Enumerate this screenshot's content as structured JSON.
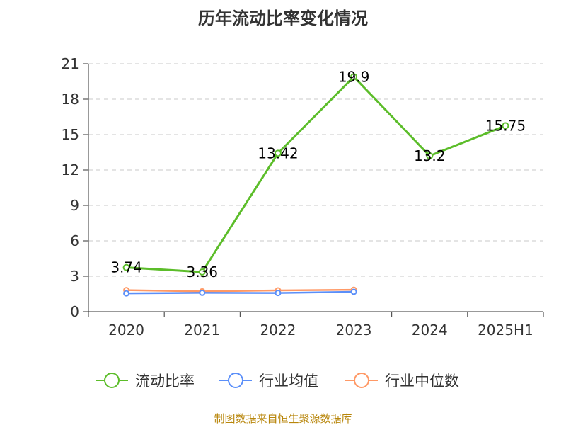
{
  "chart_data": {
    "type": "line",
    "title": "历年流动比率变化情况",
    "categories": [
      "2020",
      "2021",
      "2022",
      "2023",
      "2024",
      "2025H1"
    ],
    "ylim": [
      0,
      21
    ],
    "yticks": [
      0,
      3,
      6,
      9,
      12,
      15,
      18,
      21
    ],
    "grid": "horizontal dashed",
    "legend_position": "bottom",
    "series": [
      {
        "name": "流动比率",
        "color": "#5cbd2a",
        "values": [
          3.74,
          3.36,
          13.42,
          19.9,
          13.2,
          15.75
        ],
        "labels": [
          "3.74",
          "3.36",
          "13.42",
          "19.9",
          "13.2",
          "15.75"
        ]
      },
      {
        "name": "行业均值",
        "color": "#5b8ff9",
        "values": [
          1.55,
          1.6,
          1.58,
          1.68,
          null,
          null
        ]
      },
      {
        "name": "行业中位数",
        "color": "#ff9966",
        "values": [
          1.82,
          1.72,
          1.8,
          1.85,
          null,
          null
        ]
      }
    ]
  },
  "footer": {
    "source": "制图数据来自恒生聚源数据库"
  }
}
